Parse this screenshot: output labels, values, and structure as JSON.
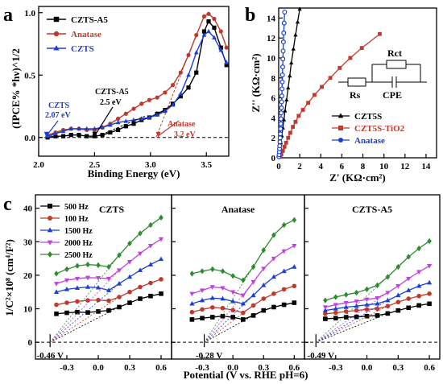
{
  "panel_labels": {
    "a": "a",
    "b": "b",
    "c": "c"
  },
  "chart_data": [
    {
      "id": "a",
      "type": "line",
      "xlabel": "Binding Energy (eV)",
      "ylabel": "(IPCE% *hν)^1/2",
      "xlim": [
        2.0,
        3.7
      ],
      "ylim": [
        -0.15,
        1.05
      ],
      "xticks": [
        "2.0",
        "2.5",
        "3.0",
        "3.5"
      ],
      "xtick_values": [
        2.0,
        2.5,
        3.0,
        3.5
      ],
      "yticks": [
        "0.0",
        "0.5",
        "1.0"
      ],
      "ytick_values": [
        0.0,
        0.5,
        1.0
      ],
      "legend_position": "top-left",
      "series": [
        {
          "name": "CZTS-A5",
          "color": "#000000",
          "marker": "square",
          "x": [
            2.08,
            2.15,
            2.22,
            2.29,
            2.36,
            2.43,
            2.5,
            2.57,
            2.64,
            2.71,
            2.78,
            2.85,
            2.92,
            2.99,
            3.06,
            3.13,
            3.2,
            3.27,
            3.34,
            3.41,
            3.48,
            3.52,
            3.57,
            3.63,
            3.68
          ],
          "y": [
            0.0,
            0.01,
            0.01,
            0.02,
            0.02,
            0.01,
            0.01,
            0.02,
            0.04,
            0.06,
            0.09,
            0.11,
            0.14,
            0.16,
            0.19,
            0.22,
            0.27,
            0.33,
            0.4,
            0.52,
            0.85,
            0.93,
            0.88,
            0.72,
            0.58
          ]
        },
        {
          "name": "Anatase",
          "color": "#c0392b",
          "marker": "circle",
          "x": [
            2.08,
            2.15,
            2.22,
            2.29,
            2.36,
            2.43,
            2.5,
            2.57,
            2.64,
            2.71,
            2.78,
            2.85,
            2.92,
            2.99,
            3.06,
            3.13,
            3.2,
            3.27,
            3.34,
            3.41,
            3.48,
            3.52,
            3.57,
            3.63,
            3.68
          ],
          "y": [
            0.02,
            0.04,
            0.06,
            0.07,
            0.07,
            0.06,
            0.06,
            0.08,
            0.11,
            0.15,
            0.19,
            0.23,
            0.27,
            0.3,
            0.32,
            0.36,
            0.42,
            0.52,
            0.66,
            0.82,
            0.97,
            0.99,
            0.95,
            0.85,
            0.72
          ]
        },
        {
          "name": "CZTS",
          "color": "#1a3fd6",
          "marker": "triangle",
          "x": [
            2.08,
            2.15,
            2.22,
            2.29,
            2.36,
            2.43,
            2.5,
            2.57,
            2.64,
            2.71,
            2.78,
            2.85,
            2.92,
            2.99,
            3.06,
            3.13,
            3.2,
            3.27,
            3.34,
            3.41,
            3.48,
            3.52,
            3.57,
            3.63,
            3.68
          ],
          "y": [
            0.01,
            0.03,
            0.05,
            0.07,
            0.07,
            0.07,
            0.07,
            0.08,
            0.1,
            0.12,
            0.13,
            0.14,
            0.15,
            0.16,
            0.18,
            0.21,
            0.26,
            0.35,
            0.5,
            0.68,
            0.82,
            0.85,
            0.8,
            0.7,
            0.6
          ]
        }
      ],
      "annotations": [
        {
          "label": "CZTS",
          "value": "2.07 eV",
          "color": "#1a3fd6"
        },
        {
          "label": "CZTS-A5",
          "value": "2.5 eV",
          "color": "#000000"
        },
        {
          "label": "Anatase",
          "value": "3.2 eV",
          "color": "#c0392b"
        }
      ]
    },
    {
      "id": "b",
      "type": "scatter",
      "xlabel": "Z' (KΩ·cm²)",
      "ylabel": "Z'' (KΩ·cm²)",
      "xlim": [
        0,
        15
      ],
      "ylim": [
        0,
        15
      ],
      "xticks": [
        "0",
        "2",
        "4",
        "6",
        "8",
        "10",
        "12",
        "14"
      ],
      "xtick_values": [
        0,
        2,
        4,
        6,
        8,
        10,
        12,
        14
      ],
      "yticks": [
        "0",
        "2",
        "4",
        "6",
        "8",
        "10",
        "12",
        "14"
      ],
      "ytick_values": [
        0,
        2,
        4,
        6,
        8,
        10,
        12,
        14
      ],
      "legend_position": "bottom-right",
      "series": [
        {
          "name": "CZT5S",
          "color": "#000000",
          "marker": "triangle",
          "x": [
            0.05,
            0.1,
            0.15,
            0.2,
            0.3,
            0.4,
            0.5,
            0.6,
            0.75,
            0.9,
            1.05,
            1.2,
            1.4,
            1.6,
            1.8,
            2.0
          ],
          "y": [
            0.2,
            0.6,
            1.0,
            1.5,
            2.2,
            3.0,
            3.8,
            4.7,
            5.8,
            7.0,
            8.2,
            9.5,
            10.9,
            12.3,
            13.6,
            14.9
          ]
        },
        {
          "name": "CZT5S-TiO2",
          "color": "#c0392b",
          "marker": "square",
          "x": [
            0.15,
            0.25,
            0.4,
            0.55,
            0.7,
            0.9,
            1.1,
            1.35,
            1.6,
            1.9,
            2.3,
            2.8,
            3.4,
            4.1,
            4.9,
            5.8,
            6.8,
            7.9,
            9.6
          ],
          "y": [
            0.1,
            0.35,
            0.7,
            1.1,
            1.5,
            2.0,
            2.5,
            3.1,
            3.6,
            4.2,
            4.8,
            5.5,
            6.3,
            7.1,
            8.0,
            9.0,
            10.0,
            11.0,
            12.4
          ]
        },
        {
          "name": "Anatase",
          "color": "#1a3fd6",
          "marker": "circle",
          "x": [
            0.02,
            0.04,
            0.06,
            0.08,
            0.1,
            0.12,
            0.14,
            0.16,
            0.18,
            0.2,
            0.22,
            0.24,
            0.26,
            0.28,
            0.3,
            0.32,
            0.34,
            0.36,
            0.38,
            0.4,
            0.42,
            0.45,
            0.48,
            0.52,
            0.56
          ],
          "y": [
            0.1,
            0.3,
            0.6,
            0.9,
            1.2,
            1.6,
            2.0,
            2.4,
            2.9,
            3.4,
            3.9,
            4.5,
            5.0,
            5.6,
            6.2,
            6.9,
            7.6,
            8.3,
            9.1,
            9.9,
            10.7,
            11.6,
            12.5,
            13.5,
            14.6
          ]
        }
      ],
      "circuit": {
        "rs": "Rs",
        "rct": "Rct",
        "cpe": "CPE"
      }
    },
    {
      "id": "c",
      "type": "line",
      "xlabel": "Potential (V vs. RHE pH=6)",
      "ylabel": "1/C²×10⁸ (cm⁴/F²)",
      "xlim": [
        -0.6,
        0.7
      ],
      "ylim": [
        -5,
        44
      ],
      "xticks": [
        "-0.3",
        "0.0",
        "0.3",
        "0.6"
      ],
      "xtick_values": [
        -0.3,
        0.0,
        0.3,
        0.6
      ],
      "yticks": [
        "0",
        "10",
        "20",
        "30",
        "40"
      ],
      "ytick_values": [
        0,
        10,
        20,
        30,
        40
      ],
      "legend": [
        "500 Hz",
        "100 Hz",
        "1500 Hz",
        "2000 Hz",
        "2500 Hz"
      ],
      "legend_colors": [
        "#000000",
        "#c0392b",
        "#1a3fd6",
        "#c040e0",
        "#2e8b2e"
      ],
      "legend_markers": [
        "square",
        "circle",
        "triangle",
        "triangle-down",
        "diamond"
      ],
      "legend_position": "top-left",
      "subplots": [
        {
          "title": "CZTS",
          "intercept": "-0.46 V",
          "intercept_x": -0.46,
          "x": [
            -0.4,
            -0.3,
            -0.2,
            -0.1,
            0.0,
            0.1,
            0.2,
            0.3,
            0.4,
            0.5,
            0.6
          ],
          "series": [
            {
              "name": "500 Hz",
              "y": [
                8.5,
                8.8,
                9.0,
                8.9,
                9.2,
                9.5,
                10.5,
                11.8,
                13.0,
                13.8,
                14.5
              ]
            },
            {
              "name": "100 Hz",
              "y": [
                11.2,
                11.8,
                12.2,
                12.5,
                12.6,
                12.4,
                13.5,
                15.0,
                16.5,
                17.7,
                18.8
              ]
            },
            {
              "name": "1500 Hz",
              "y": [
                15.0,
                15.8,
                16.2,
                16.5,
                16.3,
                15.5,
                17.5,
                19.5,
                21.5,
                23.2,
                24.8
              ]
            },
            {
              "name": "2000 Hz",
              "y": [
                17.5,
                18.5,
                19.0,
                19.3,
                19.2,
                19.0,
                21.5,
                24.0,
                26.5,
                28.8,
                30.8
              ]
            },
            {
              "name": "2500 Hz",
              "y": [
                20.5,
                21.8,
                22.8,
                23.2,
                23.0,
                22.5,
                26.0,
                29.5,
                32.5,
                35.0,
                37.2
              ]
            }
          ]
        },
        {
          "title": "Anatase",
          "intercept": "-0.28 V",
          "intercept_x": -0.28,
          "x": [
            -0.4,
            -0.3,
            -0.2,
            -0.1,
            0.0,
            0.1,
            0.2,
            0.3,
            0.4,
            0.5,
            0.6
          ],
          "series": [
            {
              "name": "500 Hz",
              "y": [
                6.8,
                7.2,
                7.5,
                7.8,
                7.5,
                6.8,
                8.0,
                9.5,
                10.5,
                11.2,
                11.8
              ]
            },
            {
              "name": "100 Hz",
              "y": [
                9.0,
                9.8,
                10.4,
                10.2,
                9.6,
                8.8,
                11.0,
                13.0,
                14.5,
                15.8,
                16.8
              ]
            },
            {
              "name": "1500 Hz",
              "y": [
                11.5,
                12.5,
                13.2,
                13.0,
                12.2,
                11.5,
                14.0,
                17.0,
                19.5,
                21.2,
                22.5
              ]
            },
            {
              "name": "2000 Hz",
              "y": [
                14.5,
                15.5,
                16.5,
                16.2,
                15.0,
                14.0,
                18.0,
                22.0,
                25.0,
                27.2,
                28.8
              ]
            },
            {
              "name": "2500 Hz",
              "y": [
                20.5,
                21.2,
                21.8,
                21.2,
                19.8,
                18.5,
                22.5,
                27.5,
                32.0,
                35.0,
                36.5
              ]
            }
          ]
        },
        {
          "title": "CZTS-A5",
          "intercept": "-0.49 V",
          "intercept_x": -0.49,
          "x": [
            -0.4,
            -0.3,
            -0.2,
            -0.1,
            0.0,
            0.1,
            0.2,
            0.3,
            0.4,
            0.5,
            0.6
          ],
          "series": [
            {
              "name": "500 Hz",
              "y": [
                7.0,
                7.2,
                7.5,
                7.6,
                7.8,
                8.0,
                8.6,
                9.5,
                10.3,
                11.0,
                11.5
              ]
            },
            {
              "name": "100 Hz",
              "y": [
                8.5,
                8.8,
                9.2,
                9.5,
                9.8,
                10.0,
                10.8,
                12.0,
                13.0,
                13.8,
                14.5
              ]
            },
            {
              "name": "1500 Hz",
              "y": [
                9.5,
                10.0,
                10.5,
                10.8,
                11.2,
                11.5,
                12.5,
                14.0,
                15.5,
                16.8,
                17.8
              ]
            },
            {
              "name": "2000 Hz",
              "y": [
                10.5,
                11.2,
                11.8,
                12.2,
                12.8,
                13.2,
                14.8,
                16.8,
                19.0,
                21.0,
                22.8
              ]
            },
            {
              "name": "2500 Hz",
              "y": [
                12.5,
                13.5,
                14.2,
                14.8,
                15.8,
                17.0,
                19.5,
                22.5,
                25.5,
                28.0,
                30.2
              ]
            }
          ]
        }
      ]
    }
  ]
}
